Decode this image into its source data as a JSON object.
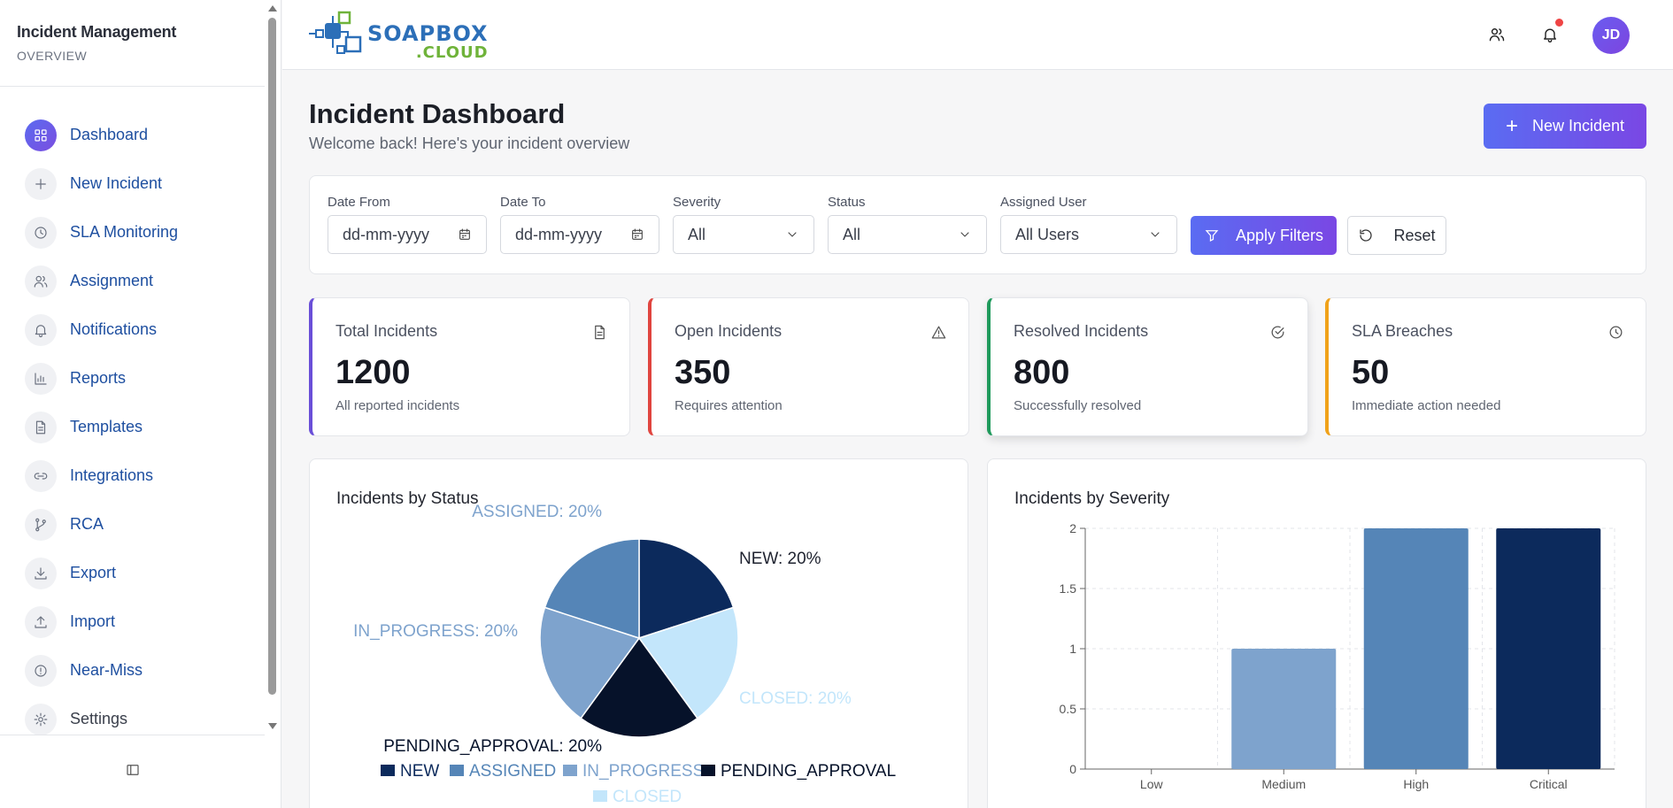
{
  "sidebar": {
    "title": "Incident Management",
    "subtitle": "OVERVIEW",
    "items": [
      {
        "label": "Dashboard",
        "icon": "grid-icon",
        "active": true
      },
      {
        "label": "New Incident",
        "icon": "plus-icon"
      },
      {
        "label": "SLA Monitoring",
        "icon": "clock-icon"
      },
      {
        "label": "Assignment",
        "icon": "users-icon"
      },
      {
        "label": "Notifications",
        "icon": "bell-icon"
      },
      {
        "label": "Reports",
        "icon": "bar-chart-icon"
      },
      {
        "label": "Templates",
        "icon": "file-icon"
      },
      {
        "label": "Integrations",
        "icon": "link-icon"
      },
      {
        "label": "RCA",
        "icon": "git-branch-icon"
      },
      {
        "label": "Export",
        "icon": "download-icon"
      },
      {
        "label": "Import",
        "icon": "upload-icon"
      },
      {
        "label": "Near-Miss",
        "icon": "alert-circle-icon"
      },
      {
        "label": "Settings",
        "icon": "gear-icon"
      }
    ]
  },
  "topbar": {
    "logo_main": "SOAPBOX",
    "logo_sub": ".CLOUD",
    "avatar_initials": "JD"
  },
  "header": {
    "title": "Incident Dashboard",
    "subtitle": "Welcome back! Here's your incident overview",
    "new_button": "New Incident"
  },
  "filters": {
    "date_from_label": "Date From",
    "date_from_value": "dd-mm-yyyy",
    "date_to_label": "Date To",
    "date_to_value": "dd-mm-yyyy",
    "severity_label": "Severity",
    "severity_value": "All",
    "status_label": "Status",
    "status_value": "All",
    "user_label": "Assigned User",
    "user_value": "All Users",
    "apply": "Apply Filters",
    "reset": "Reset"
  },
  "cards": [
    {
      "label": "Total Incidents",
      "value": "1200",
      "desc": "All reported incidents",
      "color": "#6a4fd8"
    },
    {
      "label": "Open Incidents",
      "value": "350",
      "desc": "Requires attention",
      "color": "#e0453f"
    },
    {
      "label": "Resolved Incidents",
      "value": "800",
      "desc": "Successfully resolved",
      "color": "#1f9a5c"
    },
    {
      "label": "SLA Breaches",
      "value": "50",
      "desc": "Immediate action needed",
      "color": "#f0a21a"
    }
  ],
  "chart_data": [
    {
      "type": "pie",
      "title": "Incidents by Status",
      "categories": [
        "NEW",
        "ASSIGNED",
        "IN_PROGRESS",
        "PENDING_APPROVAL",
        "CLOSED"
      ],
      "values": [
        20,
        20,
        20,
        20,
        20
      ],
      "labels": [
        "NEW: 20%",
        "ASSIGNED: 20%",
        "IN_PROGRESS: 20%",
        "PENDING_APPROVAL: 20%",
        "CLOSED: 20%"
      ],
      "colors": [
        "#0c2a5c",
        "#5585b7",
        "#7ea3cd",
        "#06122a",
        "#c3e6fb"
      ],
      "legend": "bottom"
    },
    {
      "type": "bar",
      "title": "Incidents by Severity",
      "categories": [
        "Low",
        "Medium",
        "High",
        "Critical"
      ],
      "values": [
        0,
        1,
        2,
        2
      ],
      "colors": [
        "#c3e6fb",
        "#7ea3cd",
        "#5585b7",
        "#0c2a5c"
      ],
      "yticks": [
        "0",
        "0.5",
        "1",
        "1.5",
        "2"
      ],
      "ylim": [
        0,
        2
      ],
      "grid": true
    }
  ]
}
